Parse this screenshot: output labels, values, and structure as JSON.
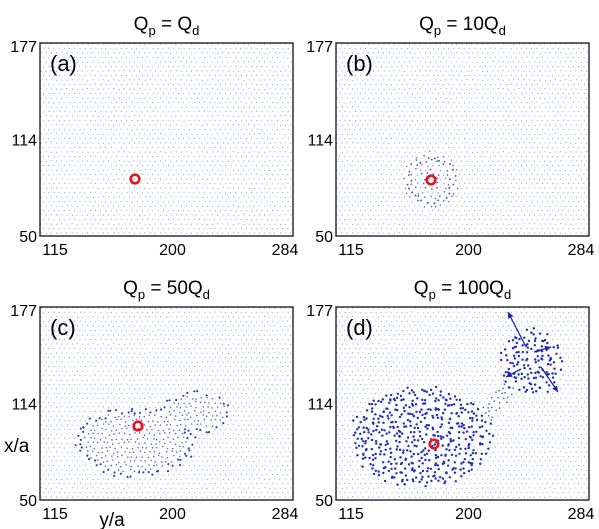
{
  "chart_data": [
    {
      "type": "scatter",
      "panel_label": "(a)",
      "title": {
        "main": "Q",
        "sub": "p",
        "rest": " = Q",
        "sub2": "d"
      },
      "x_ticks": [
        "115",
        "200",
        "284"
      ],
      "y_ticks": [
        "177",
        "114",
        "50"
      ],
      "xlim": [
        115,
        284
      ],
      "ylim": [
        50,
        177
      ],
      "xlabel": "",
      "ylabel": "",
      "marker": {
        "y": 189,
        "x": 90
      },
      "disturbance": {
        "shape": "none",
        "strength": 0.1
      }
    },
    {
      "type": "scatter",
      "panel_label": "(b)",
      "title": {
        "main": "Q",
        "sub": "p",
        "rest": " = 10Q",
        "sub2": "d"
      },
      "x_ticks": [
        "115",
        "200",
        "284"
      ],
      "y_ticks": [
        "177",
        "114",
        "50"
      ],
      "xlim": [
        115,
        284
      ],
      "ylim": [
        50,
        177
      ],
      "xlabel": "",
      "ylabel": "",
      "marker": {
        "y": 190,
        "x": 90
      },
      "disturbance": {
        "shape": "ring",
        "strength": 0.6
      }
    },
    {
      "type": "scatter",
      "panel_label": "(c)",
      "title": {
        "main": "Q",
        "sub": "p",
        "rest": " = 50Q",
        "sub2": "d"
      },
      "x_ticks": [
        "115",
        "200",
        "284"
      ],
      "y_ticks": [
        "177",
        "114",
        "50"
      ],
      "xlim": [
        115,
        284
      ],
      "ylim": [
        50,
        177
      ],
      "xlabel": "y/a",
      "ylabel": "x/a",
      "marker": {
        "y": 172,
        "x": 93
      },
      "disturbance": {
        "shape": "blob",
        "strength": 1.0
      }
    },
    {
      "type": "scatter",
      "panel_label": "(d)",
      "title": {
        "main": "Q",
        "sub": "p",
        "rest": " = 100Q",
        "sub2": "d"
      },
      "x_ticks": [
        "115",
        "200",
        "284"
      ],
      "y_ticks": [
        "177",
        "114",
        "50"
      ],
      "xlim": [
        115,
        284
      ],
      "ylim": [
        50,
        177
      ],
      "xlabel": "",
      "ylabel": "",
      "marker": {
        "y": 190,
        "x": 93
      },
      "disturbance": {
        "shape": "burst",
        "strength": 1.6
      }
    }
  ],
  "colors": {
    "particles": "#1f2fbf",
    "arrows": "#1a23b8",
    "marker": "#e8141c",
    "frame": "#222222"
  }
}
